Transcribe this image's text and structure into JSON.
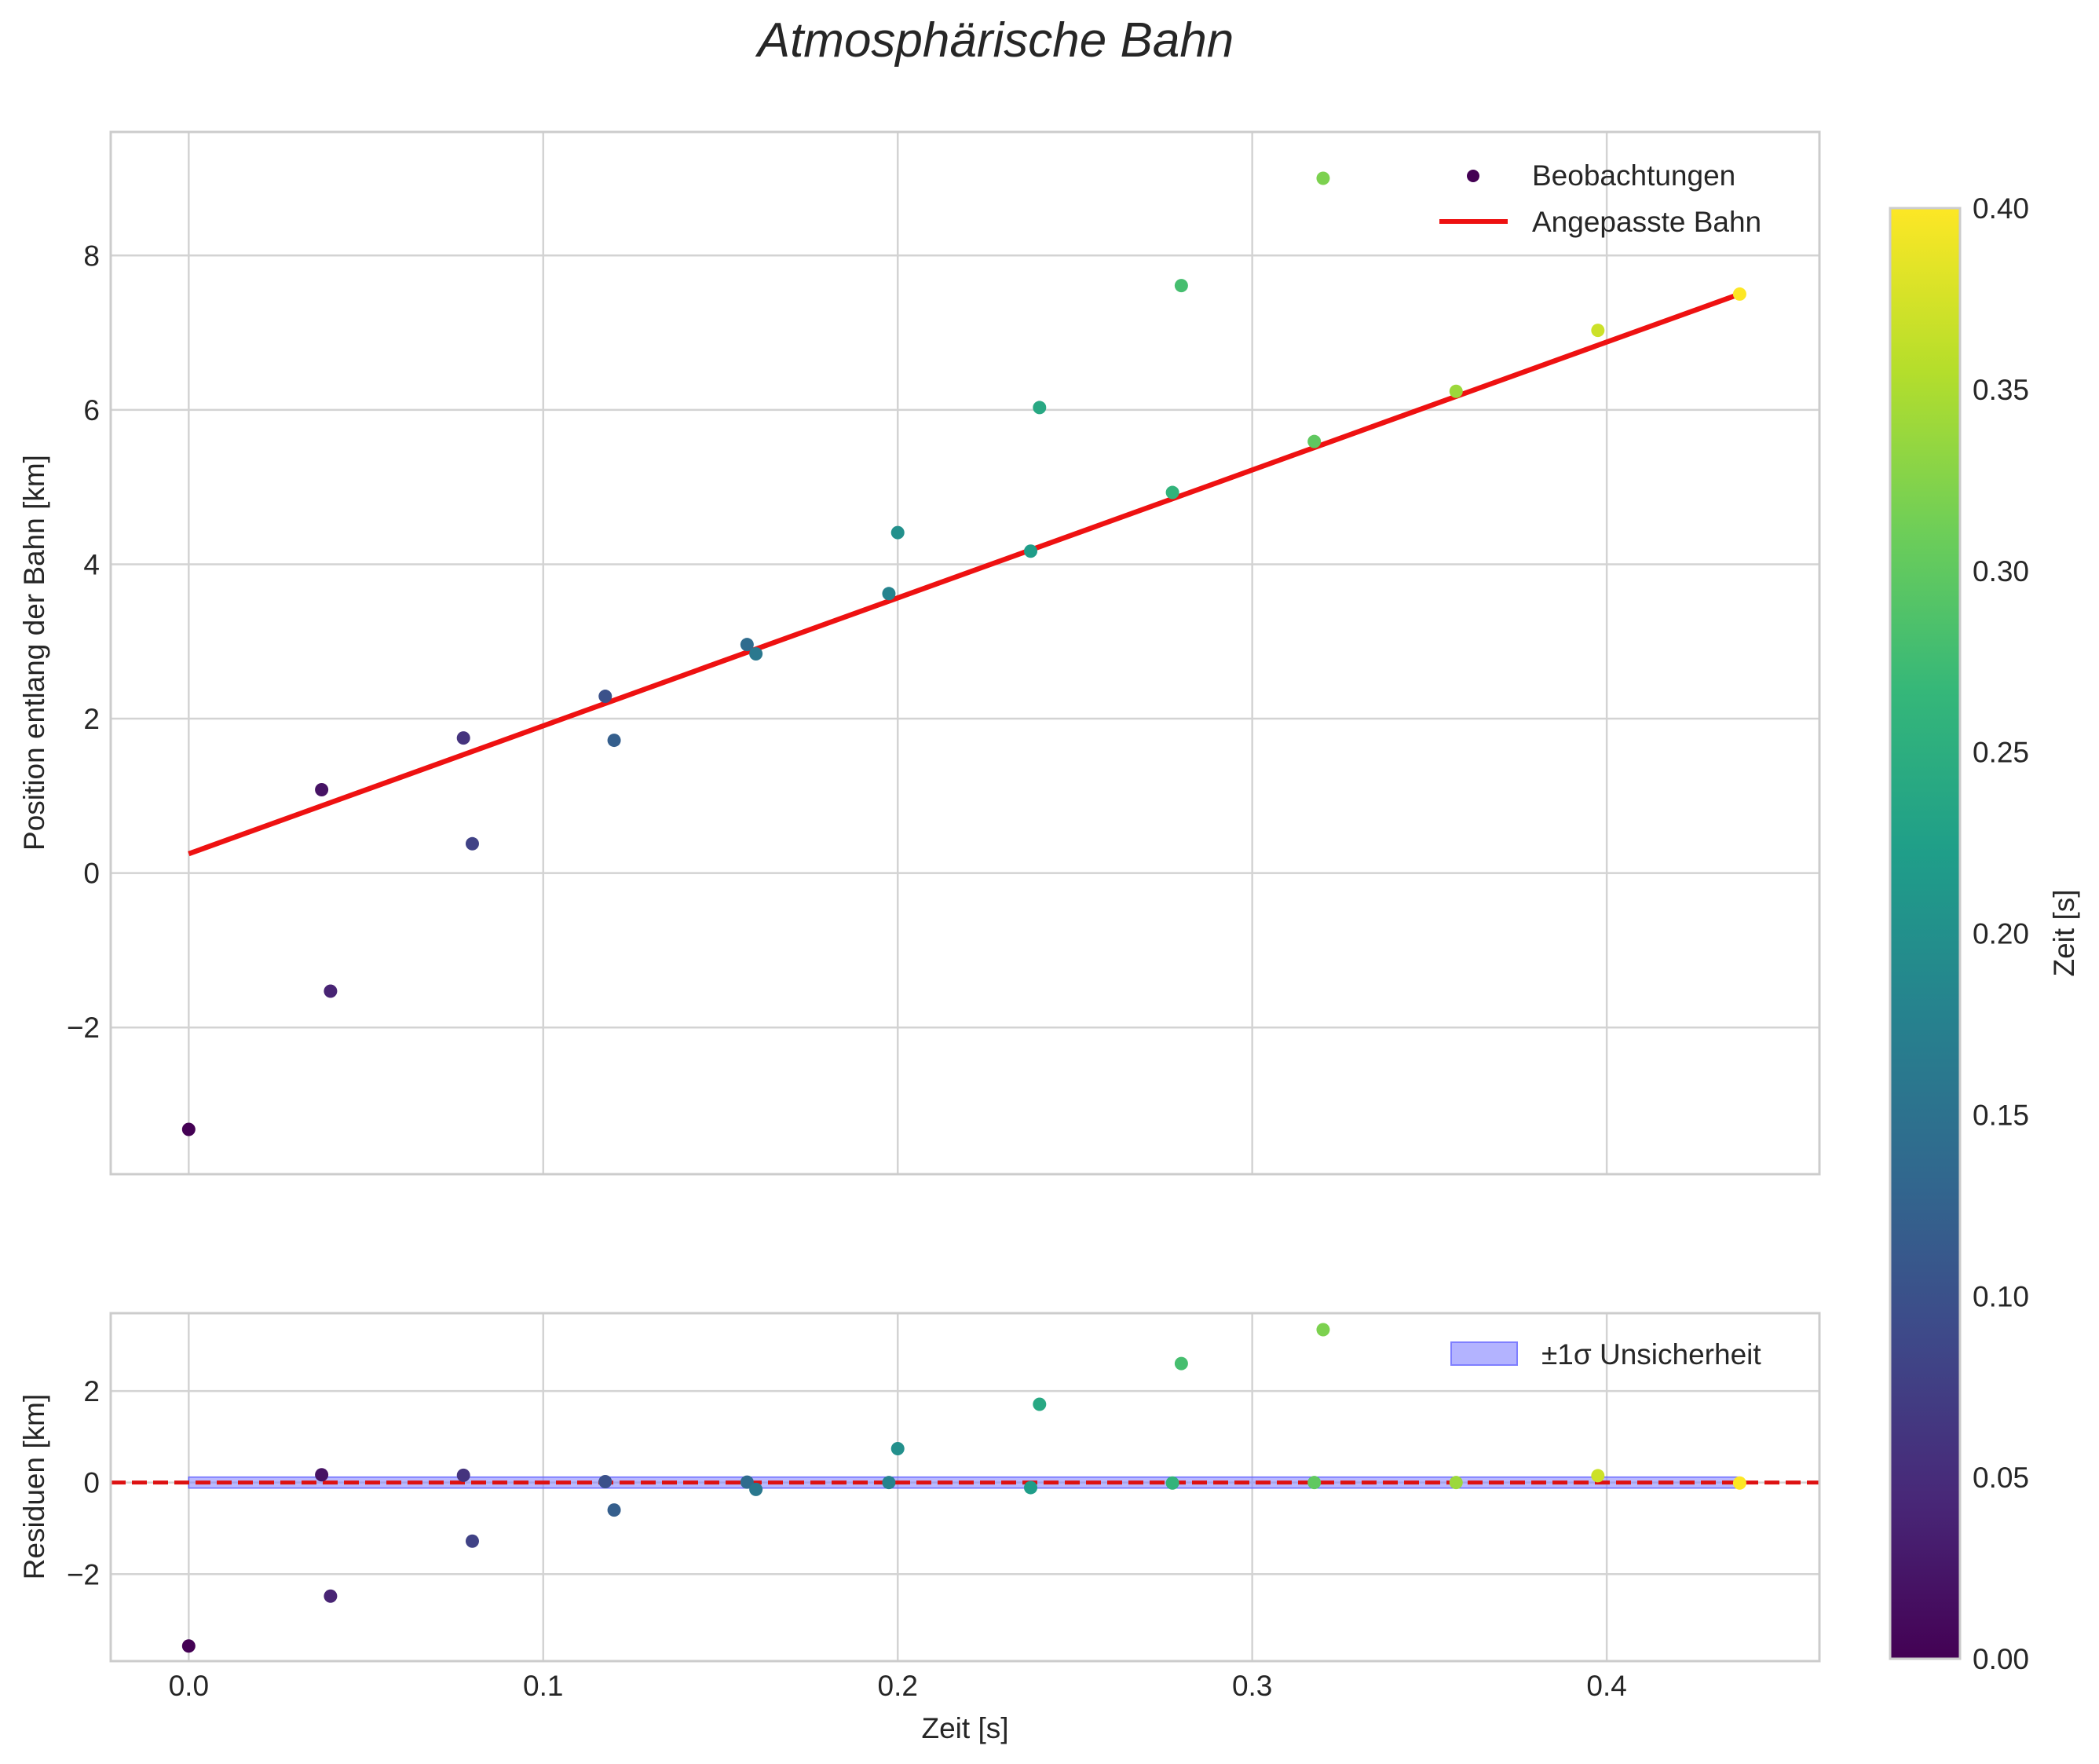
{
  "chart_data": [
    {
      "type": "scatter",
      "title": "Atmosphärische Bahn",
      "xlabel": "",
      "ylabel": "Position entlang der Bahn [km]",
      "xlim": [
        -0.022,
        0.46
      ],
      "ylim": [
        -3.9,
        9.6
      ],
      "xticks": [
        0.0,
        0.1,
        0.2,
        0.3,
        0.4
      ],
      "yticks": [
        -2,
        0,
        2,
        4,
        6,
        8
      ],
      "ytick_labels": [
        "−2",
        "0",
        "2",
        "4",
        "6",
        "8"
      ],
      "grid": true,
      "legend": {
        "position": "top-right",
        "entries": [
          {
            "label": "Beobachtungen",
            "kind": "marker",
            "color": "#440154"
          },
          {
            "label": "Angepasste Bahn",
            "kind": "line",
            "color": "#ee1111"
          }
        ]
      },
      "series": [
        {
          "name": "Beobachtungen",
          "kind": "scatter",
          "colormap": "viridis",
          "points": [
            {
              "x": 0.0,
              "y": -3.32,
              "c": 0.0
            },
            {
              "x": 0.0375,
              "y": 1.08,
              "c": 0.02
            },
            {
              "x": 0.04,
              "y": -1.53,
              "c": 0.04
            },
            {
              "x": 0.0775,
              "y": 1.75,
              "c": 0.06
            },
            {
              "x": 0.08,
              "y": 0.38,
              "c": 0.08
            },
            {
              "x": 0.1175,
              "y": 2.29,
              "c": 0.1
            },
            {
              "x": 0.12,
              "y": 1.72,
              "c": 0.12
            },
            {
              "x": 0.1575,
              "y": 2.96,
              "c": 0.14
            },
            {
              "x": 0.16,
              "y": 2.84,
              "c": 0.16
            },
            {
              "x": 0.1975,
              "y": 3.62,
              "c": 0.18
            },
            {
              "x": 0.2,
              "y": 4.41,
              "c": 0.2
            },
            {
              "x": 0.2375,
              "y": 4.17,
              "c": 0.22
            },
            {
              "x": 0.24,
              "y": 6.03,
              "c": 0.24
            },
            {
              "x": 0.2775,
              "y": 4.93,
              "c": 0.26
            },
            {
              "x": 0.28,
              "y": 7.61,
              "c": 0.28
            },
            {
              "x": 0.3175,
              "y": 5.59,
              "c": 0.3
            },
            {
              "x": 0.32,
              "y": 9.0,
              "c": 0.32
            },
            {
              "x": 0.3575,
              "y": 6.24,
              "c": 0.34
            },
            {
              "x": 0.3975,
              "y": 7.03,
              "c": 0.37
            },
            {
              "x": 0.4375,
              "y": 7.5,
              "c": 0.4
            }
          ]
        },
        {
          "name": "Angepasste Bahn",
          "kind": "line",
          "color": "#ee1111",
          "x": [
            0.0,
            0.4375
          ],
          "y": [
            0.25,
            7.5
          ]
        }
      ]
    },
    {
      "type": "scatter",
      "title": "",
      "xlabel": "Zeit [s]",
      "ylabel": "Residuen [km]",
      "xlim": [
        -0.022,
        0.46
      ],
      "ylim": [
        -3.9,
        3.7
      ],
      "xticks": [
        0.0,
        0.1,
        0.2,
        0.3,
        0.4
      ],
      "xtick_labels": [
        "0.0",
        "0.1",
        "0.2",
        "0.3",
        "0.4"
      ],
      "yticks": [
        -2,
        0,
        2
      ],
      "ytick_labels": [
        "−2",
        "0",
        "2"
      ],
      "grid": true,
      "legend": {
        "position": "top-right",
        "entries": [
          {
            "label": "±1σ Unsicherheit",
            "kind": "patch",
            "color": "#b3b3ff"
          }
        ]
      },
      "band": {
        "label": "±1σ Unsicherheit",
        "x": [
          0.0,
          0.4375
        ],
        "lower": -0.12,
        "upper": 0.12,
        "color": "#8080ff"
      },
      "zero_line": {
        "y": 0,
        "color": "#dd1111",
        "style": "dashed"
      },
      "series": [
        {
          "name": "Residuen",
          "kind": "scatter",
          "colormap": "viridis",
          "points": [
            {
              "x": 0.0,
              "y": -3.57,
              "c": 0.0
            },
            {
              "x": 0.0375,
              "y": 0.17,
              "c": 0.02
            },
            {
              "x": 0.04,
              "y": -2.48,
              "c": 0.04
            },
            {
              "x": 0.0775,
              "y": 0.16,
              "c": 0.06
            },
            {
              "x": 0.08,
              "y": -1.28,
              "c": 0.08
            },
            {
              "x": 0.1175,
              "y": 0.02,
              "c": 0.1
            },
            {
              "x": 0.12,
              "y": -0.6,
              "c": 0.12
            },
            {
              "x": 0.1575,
              "y": 0.01,
              "c": 0.14
            },
            {
              "x": 0.16,
              "y": -0.15,
              "c": 0.16
            },
            {
              "x": 0.1975,
              "y": 0.0,
              "c": 0.18
            },
            {
              "x": 0.2,
              "y": 0.74,
              "c": 0.2
            },
            {
              "x": 0.2375,
              "y": -0.11,
              "c": 0.22
            },
            {
              "x": 0.24,
              "y": 1.71,
              "c": 0.24
            },
            {
              "x": 0.2775,
              "y": -0.01,
              "c": 0.26
            },
            {
              "x": 0.28,
              "y": 2.6,
              "c": 0.28
            },
            {
              "x": 0.3175,
              "y": 0.0,
              "c": 0.3
            },
            {
              "x": 0.32,
              "y": 3.34,
              "c": 0.32
            },
            {
              "x": 0.3575,
              "y": 0.0,
              "c": 0.34
            },
            {
              "x": 0.3975,
              "y": 0.15,
              "c": 0.37
            },
            {
              "x": 0.4375,
              "y": -0.01,
              "c": 0.4
            }
          ]
        }
      ]
    },
    {
      "type": "colorbar",
      "label": "Zeit [s]",
      "colormap": "viridis",
      "range": [
        0.0,
        0.4
      ],
      "ticks": [
        0.0,
        0.05,
        0.1,
        0.15,
        0.2,
        0.25,
        0.3,
        0.35,
        0.4
      ],
      "tick_labels": [
        "0.00",
        "0.05",
        "0.10",
        "0.15",
        "0.20",
        "0.25",
        "0.30",
        "0.35",
        "0.40"
      ]
    }
  ],
  "viridis": [
    "#440154",
    "#482878",
    "#3e4989",
    "#31688e",
    "#26828e",
    "#1f9e89",
    "#35b779",
    "#6ece58",
    "#b5de2b",
    "#fde725"
  ]
}
